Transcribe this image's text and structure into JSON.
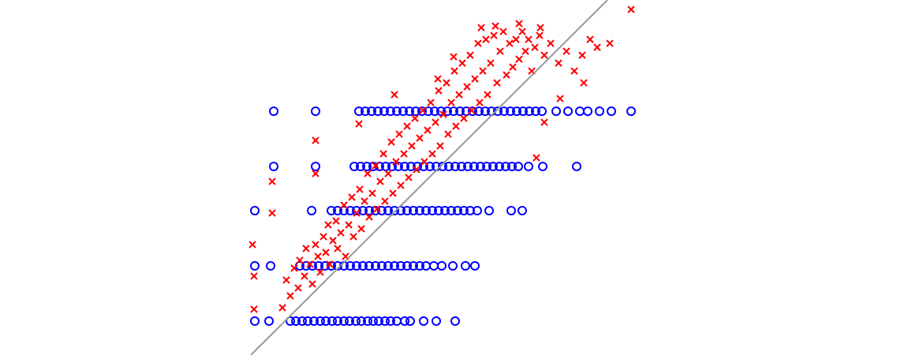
{
  "chart_data": {
    "type": "scatter",
    "grid": false,
    "xlim": [
      0,
      500
    ],
    "ylim": [
      0,
      450
    ],
    "reference_line": {
      "x": [
        0,
        452
      ],
      "y": [
        0,
        450
      ],
      "color": "#999999"
    },
    "series": [
      {
        "color": "#0000ff",
        "marker": "o",
        "x": [
          5,
          23,
          50,
          57,
          65,
          72,
          80,
          88,
          95,
          103,
          110,
          118,
          125,
          133,
          140,
          148,
          155,
          162,
          170,
          177,
          185,
          195,
          202,
          219,
          235,
          259
        ],
        "y": [
          43,
          43,
          43,
          43,
          43,
          43,
          43,
          43,
          43,
          43,
          43,
          43,
          43,
          43,
          43,
          43,
          43,
          43,
          43,
          43,
          43,
          43,
          43,
          43,
          43,
          43
        ]
      },
      {
        "color": "#0000ff",
        "marker": "o",
        "x": [
          5,
          25,
          62,
          70,
          78,
          86,
          94,
          102,
          110,
          118,
          126,
          134,
          142,
          150,
          158,
          166,
          174,
          182,
          190,
          198,
          206,
          214,
          222,
          232,
          242,
          256,
          272,
          284
        ],
        "y": [
          113,
          113,
          113,
          113,
          113,
          113,
          113,
          113,
          113,
          113,
          113,
          113,
          113,
          113,
          113,
          113,
          113,
          113,
          113,
          113,
          113,
          113,
          113,
          113,
          113,
          113,
          113,
          113
        ]
      },
      {
        "color": "#0000ff",
        "marker": "o",
        "x": [
          5,
          77,
          102,
          110,
          118,
          126,
          134,
          142,
          150,
          158,
          166,
          174,
          182,
          190,
          198,
          206,
          214,
          222,
          230,
          238,
          246,
          254,
          262,
          270,
          278,
          287,
          302,
          330,
          344
        ],
        "y": [
          183,
          183,
          183,
          183,
          183,
          183,
          183,
          183,
          183,
          183,
          183,
          183,
          183,
          183,
          183,
          183,
          183,
          183,
          183,
          183,
          183,
          183,
          183,
          183,
          183,
          183,
          183,
          183,
          183
        ]
      },
      {
        "color": "#0000ff",
        "marker": "o",
        "x": [
          29,
          82,
          131,
          139,
          147,
          155,
          163,
          171,
          179,
          187,
          195,
          203,
          211,
          219,
          227,
          235,
          243,
          251,
          259,
          267,
          275,
          283,
          291,
          299,
          307,
          315,
          323,
          331,
          339,
          352,
          370,
          413
        ],
        "y": [
          239,
          239,
          239,
          239,
          239,
          239,
          239,
          239,
          239,
          239,
          239,
          239,
          239,
          239,
          239,
          239,
          239,
          239,
          239,
          239,
          239,
          239,
          239,
          239,
          239,
          239,
          239,
          239,
          239,
          239,
          239,
          239
        ]
      },
      {
        "color": "#0000ff",
        "marker": "o",
        "x": [
          29,
          82,
          137,
          145,
          153,
          161,
          169,
          177,
          185,
          193,
          201,
          209,
          217,
          225,
          233,
          241,
          249,
          257,
          265,
          273,
          281,
          289,
          297,
          305,
          313,
          321,
          329,
          337,
          345,
          353,
          361,
          369,
          387,
          402,
          417,
          427,
          442,
          457,
          482
        ],
        "y": [
          309,
          309,
          309,
          309,
          309,
          309,
          309,
          309,
          309,
          309,
          309,
          309,
          309,
          309,
          309,
          309,
          309,
          309,
          309,
          309,
          309,
          309,
          309,
          309,
          309,
          309,
          309,
          309,
          309,
          309,
          309,
          309,
          309,
          309,
          309,
          309,
          309,
          309,
          309
        ]
      },
      {
        "color": "#ff0000",
        "marker": "x",
        "x": [
          2,
          4,
          4,
          27,
          27,
          82,
          82,
          137,
          182,
          237,
          257,
          292,
          310,
          340,
          367,
          482,
          455,
          439,
          422,
          392,
          372,
          362,
          40,
          45,
          50,
          55,
          60,
          62,
          68,
          70,
          75,
          78,
          82,
          85,
          88,
          92,
          95,
          98,
          100,
          104,
          108,
          110,
          114,
          118,
          120,
          124,
          128,
          130,
          134,
          138,
          140,
          144,
          148,
          150,
          154,
          158,
          160,
          164,
          168,
          170,
          174,
          178,
          180,
          184,
          188,
          190,
          194,
          198,
          200,
          204,
          208,
          210,
          214,
          218,
          220,
          224,
          228,
          230,
          234,
          238,
          240,
          244,
          248,
          250,
          254,
          258,
          260,
          264,
          268,
          270,
          274,
          278,
          280,
          284,
          288,
          290,
          294,
          298,
          300,
          304,
          308,
          312,
          316,
          320,
          324,
          328,
          332,
          336,
          340,
          344,
          348,
          352,
          356,
          360,
          366,
          372,
          380,
          390,
          400,
          410,
          420,
          430
        ],
        "y": [
          140,
          100,
          58,
          180,
          220,
          230,
          272,
          293,
          330,
          350,
          378,
          415,
          417,
          420,
          415,
          438,
          395,
          390,
          345,
          325,
          295,
          250,
          60,
          95,
          75,
          110,
          85,
          120,
          100,
          135,
          115,
          90,
          140,
          125,
          105,
          150,
          130,
          165,
          115,
          145,
          170,
          135,
          155,
          190,
          125,
          165,
          200,
          150,
          180,
          210,
          160,
          195,
          230,
          175,
          205,
          240,
          185,
          220,
          255,
          195,
          230,
          270,
          205,
          245,
          280,
          215,
          255,
          290,
          225,
          265,
          300,
          235,
          275,
          310,
          245,
          285,
          320,
          255,
          295,
          335,
          265,
          305,
          345,
          280,
          320,
          360,
          290,
          330,
          370,
          300,
          340,
          380,
          310,
          350,
          395,
          320,
          360,
          400,
          330,
          370,
          405,
          345,
          385,
          410,
          355,
          395,
          365,
          400,
          375,
          410,
          385,
          400,
          360,
          390,
          405,
          380,
          395,
          370,
          385,
          360,
          380,
          400
        ]
      }
    ]
  }
}
